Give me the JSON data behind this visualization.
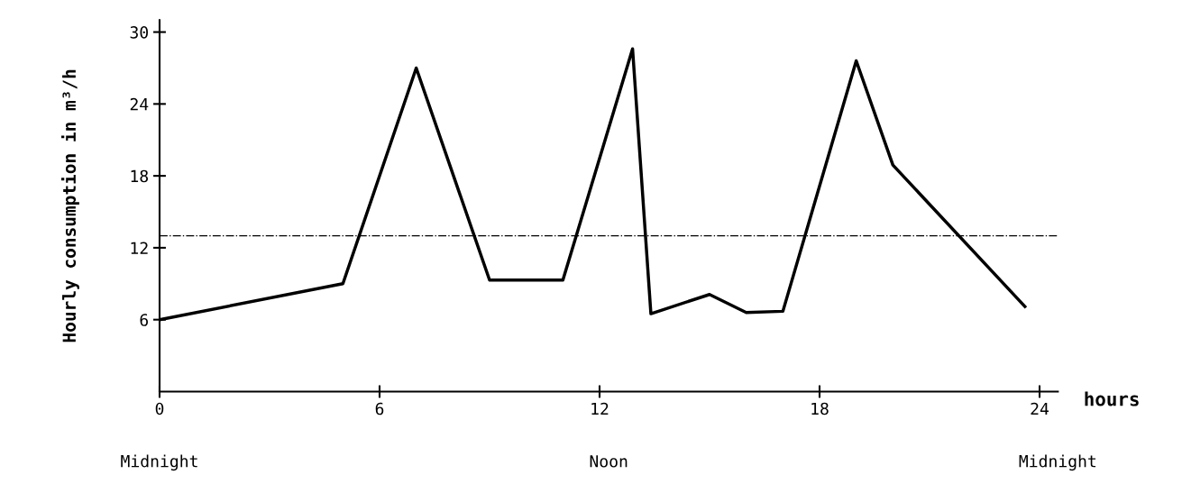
{
  "chart_data": {
    "type": "line",
    "xlabel": "hours",
    "ylabel": "Hourly consumption in m³/h",
    "x": [
      0,
      5,
      7,
      9,
      11,
      12.9,
      13.4,
      15,
      16,
      17,
      19,
      20,
      23.6
    ],
    "series": [
      {
        "color": "#000000",
        "values": [
          6,
          9,
          27,
          9.3,
          9.3,
          28.6,
          6.5,
          8.1,
          6.6,
          6.7,
          27.6,
          18.9,
          7.1
        ]
      }
    ],
    "xlim": [
      0,
      24.5
    ],
    "ylim": [
      0,
      31
    ],
    "xticks": [
      0,
      6,
      12,
      18,
      24
    ],
    "annotations": [
      "Midnight",
      "Noon",
      "Midnight"
    ],
    "yticks": [
      6,
      12,
      18,
      24,
      30
    ],
    "ref_lines": [
      {
        "axis": "y",
        "value": 13,
        "color": "#000000",
        "line_style": "dashdot"
      }
    ],
    "grid": false,
    "legend": false,
    "marker": "none",
    "line_style": "solid"
  }
}
